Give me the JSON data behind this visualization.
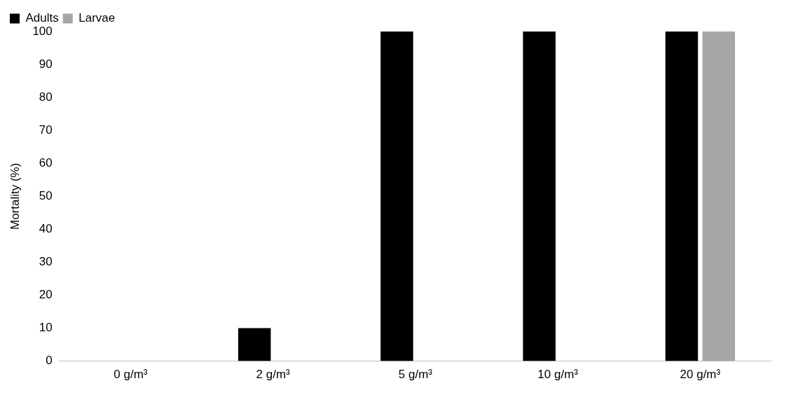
{
  "chart_data": {
    "type": "bar",
    "ylabel": "Mortality (%)",
    "categories": [
      "0 g/m³",
      "2 g/m³",
      "5 g/m³",
      "10 g/m³",
      "20 g/m³"
    ],
    "series": [
      {
        "name": "Adults",
        "color": "#000000",
        "values": [
          0,
          10,
          100,
          100,
          100
        ]
      },
      {
        "name": "Larvae",
        "color": "#a6a6a6",
        "values": [
          0,
          0,
          0,
          0,
          100
        ]
      }
    ],
    "ylim": [
      0,
      100
    ],
    "yticks": [
      0,
      10,
      20,
      30,
      40,
      50,
      60,
      70,
      80,
      90,
      100
    ],
    "grid": false,
    "legend": "top left"
  }
}
